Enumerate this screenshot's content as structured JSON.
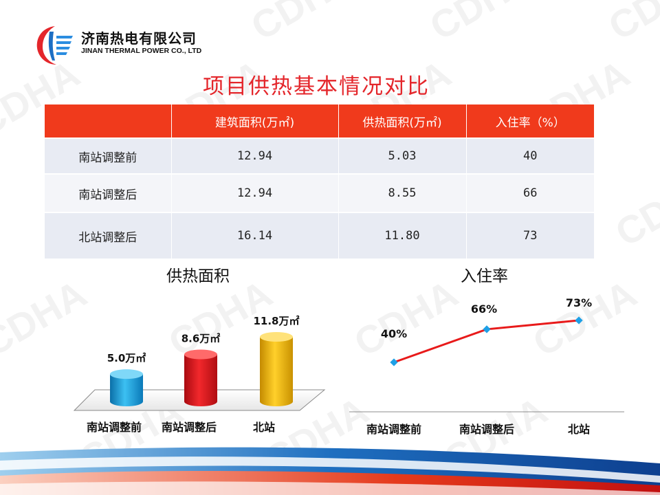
{
  "header": {
    "company_cn": "济南热电有限公司",
    "company_en": "JINAN THERMAL POWER CO., LTD",
    "watermark": "CDHA"
  },
  "title": "项目供热基本情况对比",
  "table": {
    "columns": [
      "",
      "建筑面积(万㎡)",
      "供热面积(万㎡)",
      "入住率（%）"
    ],
    "rows": [
      [
        "南站调整前",
        "12.94",
        "5.03",
        "40"
      ],
      [
        "南站调整后",
        "12.94",
        "8.55",
        "66"
      ],
      [
        "北站调整后",
        "16.14",
        "11.80",
        "73"
      ]
    ]
  },
  "colors": {
    "accent_red": "#e4262b",
    "header_red": "#f03a1c",
    "row_band": "#e8ebf3",
    "bar_blue": "#1fa3de",
    "bar_red": "#e8131a",
    "bar_gold": "#f5b800",
    "line_red": "#e81a1a",
    "marker_blue": "#1ea0e6"
  },
  "chart_data": [
    {
      "type": "bar",
      "title": "供热面积",
      "categories": [
        "南站调整前",
        "南站调整后",
        "北站"
      ],
      "values": [
        5.0,
        8.6,
        11.8
      ],
      "data_labels": [
        "5.0万㎡",
        "8.6万㎡",
        "11.8万㎡"
      ],
      "style": "3d-cylinder",
      "bar_colors": [
        "#1fa3de",
        "#e8131a",
        "#f5b800"
      ]
    },
    {
      "type": "line",
      "title": "入住率",
      "categories": [
        "南站调整前",
        "南站调整后",
        "北站"
      ],
      "values": [
        40,
        66,
        73
      ],
      "data_labels": [
        "40%",
        "66%",
        "73%"
      ],
      "line_color": "#e81a1a",
      "marker_color": "#1ea0e6"
    }
  ]
}
